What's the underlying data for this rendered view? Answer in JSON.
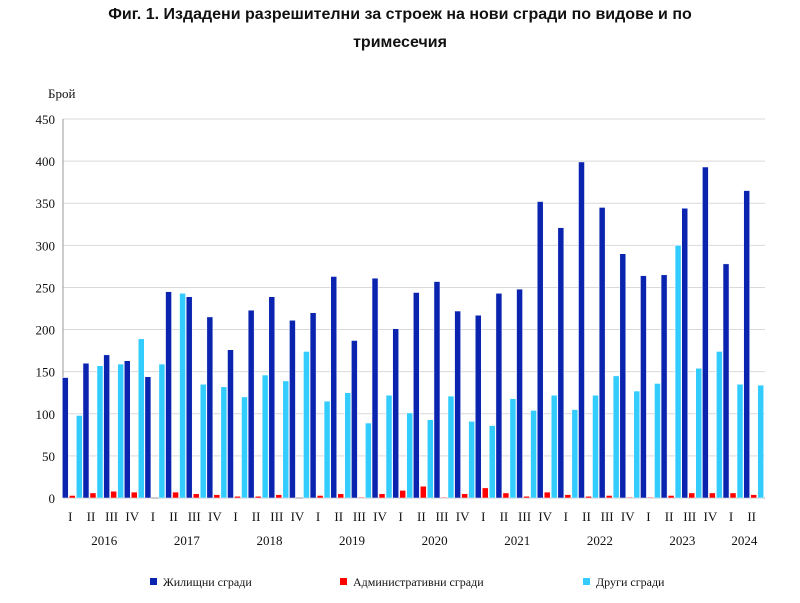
{
  "chart_data": {
    "type": "bar",
    "title_line1": "Фиг. 1. Издадени разрешителни за строеж на нови сгради по видове и по",
    "title_line2": "тримесечия",
    "ylabel": "Брой",
    "ylim": [
      0,
      450
    ],
    "yticks": [
      0,
      50,
      100,
      150,
      200,
      250,
      300,
      350,
      400,
      450
    ],
    "grid": true,
    "legend_placement": "bottom",
    "quarters": [
      "I",
      "II",
      "III",
      "IV",
      "I",
      "II",
      "III",
      "IV",
      "I",
      "II",
      "III",
      "IV",
      "I",
      "II",
      "III",
      "IV",
      "I",
      "II",
      "III",
      "IV",
      "I",
      "II",
      "III",
      "IV",
      "I",
      "II",
      "III",
      "IV",
      "I",
      "II",
      "III",
      "IV",
      "I",
      "II"
    ],
    "years": [
      {
        "label": "2016",
        "count": 4
      },
      {
        "label": "2017",
        "count": 4
      },
      {
        "label": "2018",
        "count": 4
      },
      {
        "label": "2019",
        "count": 4
      },
      {
        "label": "2020",
        "count": 4
      },
      {
        "label": "2021",
        "count": 4
      },
      {
        "label": "2022",
        "count": 4
      },
      {
        "label": "2023",
        "count": 4
      },
      {
        "label": "2024",
        "count": 2
      }
    ],
    "series": [
      {
        "name": "Жилищни сгради",
        "color": "#0a24b0",
        "values": [
          143,
          160,
          170,
          163,
          144,
          245,
          239,
          215,
          176,
          223,
          239,
          211,
          220,
          263,
          187,
          261,
          201,
          244,
          257,
          222,
          217,
          243,
          248,
          352,
          321,
          399,
          345,
          290,
          264,
          265,
          344,
          393,
          278,
          365
        ]
      },
      {
        "name": "Административни сгради",
        "color": "#ff0000",
        "values": [
          3,
          6,
          8,
          7,
          0,
          7,
          5,
          4,
          2,
          2,
          4,
          0,
          3,
          5,
          1,
          5,
          9,
          14,
          1,
          5,
          12,
          6,
          2,
          7,
          4,
          2,
          3,
          1,
          1,
          3,
          6,
          6,
          6,
          4
        ]
      },
      {
        "name": "Други сгради",
        "color": "#33ccff",
        "values": [
          98,
          157,
          159,
          189,
          159,
          243,
          135,
          132,
          120,
          146,
          139,
          174,
          115,
          125,
          89,
          122,
          101,
          93,
          121,
          91,
          86,
          118,
          104,
          122,
          105,
          122,
          145,
          127,
          136,
          300,
          154,
          174,
          135,
          134
        ]
      }
    ]
  }
}
